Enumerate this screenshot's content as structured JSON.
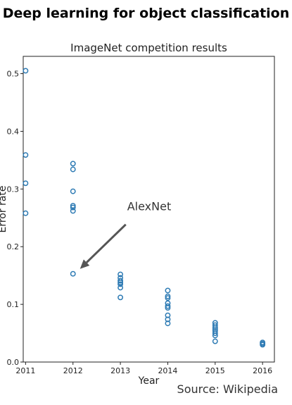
{
  "slide": {
    "title": "Deep learning for object classification",
    "source": "Source: Wikipedia"
  },
  "chart_data": {
    "type": "scatter",
    "title": "ImageNet competition results",
    "xlabel": "Year",
    "ylabel": "Error rate",
    "xlim": [
      2010.95,
      2016.25
    ],
    "ylim": [
      0.0,
      0.53
    ],
    "x_ticks": [
      2011,
      2012,
      2013,
      2014,
      2015,
      2016
    ],
    "y_ticks": [
      0.0,
      0.1,
      0.2,
      0.3,
      0.4,
      0.5
    ],
    "grid": false,
    "marker": "hollow-circle",
    "marker_color": "#2e7bb4",
    "points": [
      {
        "x": 2011,
        "y": 0.505
      },
      {
        "x": 2011,
        "y": 0.359
      },
      {
        "x": 2011,
        "y": 0.31
      },
      {
        "x": 2011,
        "y": 0.258
      },
      {
        "x": 2012,
        "y": 0.344
      },
      {
        "x": 2012,
        "y": 0.334
      },
      {
        "x": 2012,
        "y": 0.296
      },
      {
        "x": 2012,
        "y": 0.271
      },
      {
        "x": 2012,
        "y": 0.268
      },
      {
        "x": 2012,
        "y": 0.262
      },
      {
        "x": 2012,
        "y": 0.153
      },
      {
        "x": 2013,
        "y": 0.152
      },
      {
        "x": 2013,
        "y": 0.146
      },
      {
        "x": 2013,
        "y": 0.141
      },
      {
        "x": 2013,
        "y": 0.138
      },
      {
        "x": 2013,
        "y": 0.135
      },
      {
        "x": 2013,
        "y": 0.129
      },
      {
        "x": 2013,
        "y": 0.112
      },
      {
        "x": 2014,
        "y": 0.124
      },
      {
        "x": 2014,
        "y": 0.114
      },
      {
        "x": 2014,
        "y": 0.111
      },
      {
        "x": 2014,
        "y": 0.102
      },
      {
        "x": 2014,
        "y": 0.097
      },
      {
        "x": 2014,
        "y": 0.094
      },
      {
        "x": 2014,
        "y": 0.081
      },
      {
        "x": 2014,
        "y": 0.074
      },
      {
        "x": 2014,
        "y": 0.067
      },
      {
        "x": 2015,
        "y": 0.068
      },
      {
        "x": 2015,
        "y": 0.064
      },
      {
        "x": 2015,
        "y": 0.06
      },
      {
        "x": 2015,
        "y": 0.057
      },
      {
        "x": 2015,
        "y": 0.054
      },
      {
        "x": 2015,
        "y": 0.05
      },
      {
        "x": 2015,
        "y": 0.046
      },
      {
        "x": 2015,
        "y": 0.036
      },
      {
        "x": 2016,
        "y": 0.034
      },
      {
        "x": 2016,
        "y": 0.032
      },
      {
        "x": 2016,
        "y": 0.03
      }
    ],
    "annotations": [
      {
        "text": "AlexNet",
        "x": 2012,
        "y": 0.153
      }
    ]
  }
}
